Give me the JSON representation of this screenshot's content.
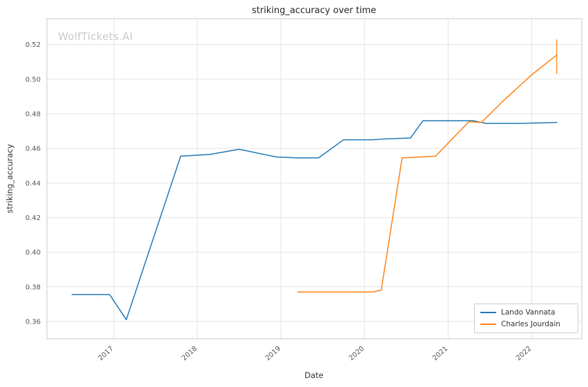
{
  "watermark": "WolfTickets.AI",
  "chart_data": {
    "type": "line",
    "title": "striking_accuracy over time",
    "xlabel": "Date",
    "ylabel": "striking_accuracy",
    "grid": true,
    "legend_position": "lower right",
    "xlim": [
      2016.2,
      2022.6
    ],
    "ylim": [
      0.35,
      0.535
    ],
    "x_ticks": [
      2017,
      2018,
      2019,
      2020,
      2021,
      2022
    ],
    "y_ticks": [
      0.36,
      0.38,
      0.4,
      0.42,
      0.44,
      0.46,
      0.48,
      0.5,
      0.52
    ],
    "series": [
      {
        "name": "Lando Vannata",
        "color": "#1f77b4",
        "x": [
          2016.5,
          2016.95,
          2017.15,
          2017.8,
          2018.15,
          2018.5,
          2018.95,
          2019.2,
          2019.45,
          2019.75,
          2020.1,
          2020.25,
          2020.55,
          2020.7,
          2021.05,
          2021.3,
          2021.45,
          2021.9,
          2022.3
        ],
        "y": [
          0.3755,
          0.3755,
          0.361,
          0.4555,
          0.4565,
          0.4595,
          0.455,
          0.4545,
          0.4545,
          0.465,
          0.465,
          0.4655,
          0.466,
          0.476,
          0.476,
          0.476,
          0.4745,
          0.4745,
          0.475
        ]
      },
      {
        "name": "Charles Jourdain",
        "color": "#ff7f0e",
        "x": [
          2019.2,
          2019.95,
          2020.1,
          2020.2,
          2020.45,
          2020.65,
          2020.85,
          2021.05,
          2021.25,
          2021.4,
          2021.65,
          2022.0,
          2022.3
        ],
        "y": [
          0.377,
          0.377,
          0.377,
          0.378,
          0.4545,
          0.455,
          0.4555,
          0.4655,
          0.4755,
          0.475,
          0.487,
          0.5025,
          0.514
        ],
        "error_bar": {
          "x": 2022.3,
          "low": 0.503,
          "high": 0.523
        }
      }
    ]
  }
}
